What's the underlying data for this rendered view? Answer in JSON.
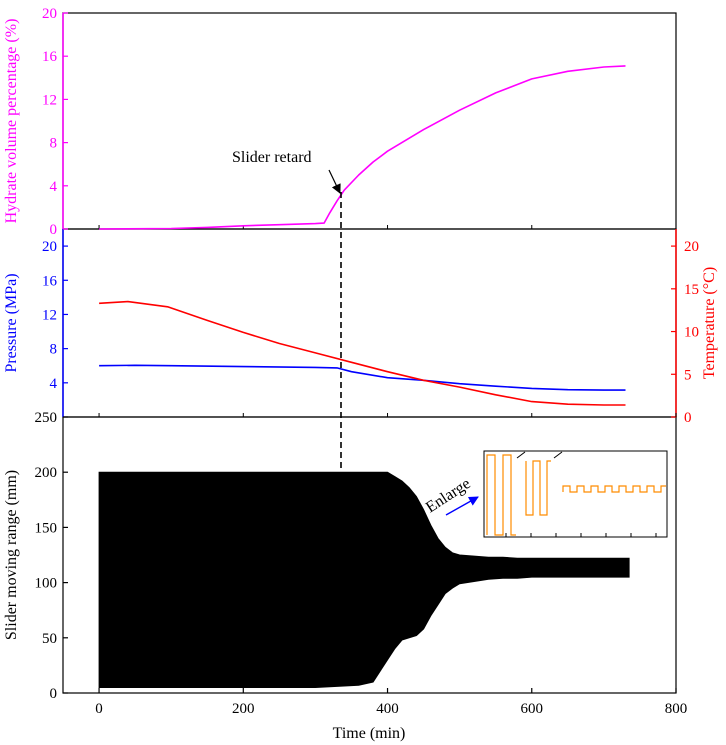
{
  "chart_data": [
    {
      "type": "line",
      "id": "hydrate",
      "ylabel": "Hydrate volume percentage (%)",
      "ylim": [
        0,
        20
      ],
      "yticks": [
        0,
        4,
        8,
        12,
        16,
        20
      ],
      "series": [
        {
          "color": "#ff00ff",
          "x": [
            0,
            100,
            150,
            200,
            250,
            300,
            312,
            320,
            330,
            340,
            360,
            380,
            400,
            450,
            500,
            550,
            600,
            650,
            700,
            730
          ],
          "y": [
            0,
            0.05,
            0.15,
            0.3,
            0.4,
            0.5,
            0.55,
            1.5,
            2.6,
            3.6,
            5.0,
            6.2,
            7.2,
            9.2,
            11.0,
            12.6,
            13.9,
            14.6,
            15.0,
            15.1
          ]
        }
      ],
      "annotation": {
        "text": "Slider retard",
        "x": 338,
        "y": 3.4
      }
    },
    {
      "type": "line",
      "id": "pressure_temperature",
      "ylabel": "Pressure (MPa)",
      "ylim": [
        0,
        22
      ],
      "yticks": [
        4,
        8,
        12,
        16,
        20
      ],
      "y2label": "Temperature (°C)",
      "y2lim": [
        0,
        22
      ],
      "y2ticks": [
        0,
        5,
        10,
        15,
        20
      ],
      "series": [
        {
          "axis": "left",
          "color": "#0000ff",
          "x": [
            0,
            50,
            100,
            200,
            300,
            330,
            350,
            400,
            450,
            500,
            550,
            600,
            650,
            700,
            730
          ],
          "y": [
            6.0,
            6.05,
            6.0,
            5.9,
            5.8,
            5.75,
            5.3,
            4.6,
            4.3,
            3.9,
            3.6,
            3.35,
            3.2,
            3.15,
            3.15
          ]
        },
        {
          "axis": "right",
          "color": "#ff0000",
          "x": [
            0,
            40,
            95,
            150,
            200,
            250,
            300,
            350,
            400,
            450,
            500,
            550,
            600,
            650,
            700,
            730
          ],
          "y": [
            13.3,
            13.5,
            12.9,
            11.3,
            9.9,
            8.6,
            7.5,
            6.4,
            5.3,
            4.3,
            3.5,
            2.6,
            1.8,
            1.5,
            1.4,
            1.4
          ]
        }
      ]
    },
    {
      "type": "area",
      "id": "slider",
      "ylabel": "Slider moving range (mm)",
      "xlabel": "Time (min)",
      "ylim": [
        0,
        250
      ],
      "yticks": [
        0,
        50,
        100,
        150,
        200,
        250
      ],
      "xlim": [
        -50,
        800
      ],
      "xticks": [
        0,
        200,
        400,
        600,
        800
      ],
      "band_color": "#000000",
      "band": {
        "x": [
          0,
          100,
          200,
          300,
          360,
          380,
          400,
          410,
          420,
          430,
          440,
          450,
          460,
          470,
          480,
          490,
          500,
          520,
          540,
          560,
          580,
          600,
          650,
          700,
          735
        ],
        "upper": [
          200,
          200,
          200,
          200,
          200,
          200,
          200,
          196,
          192,
          186,
          178,
          166,
          152,
          140,
          132,
          127,
          125,
          124,
          123,
          123,
          122,
          122,
          122,
          122,
          122
        ],
        "lower": [
          5,
          5,
          5,
          5,
          7,
          10,
          30,
          40,
          48,
          50,
          52,
          58,
          70,
          80,
          90,
          95,
          99,
          101,
          103,
          104,
          104,
          105,
          105,
          105,
          105
        ]
      },
      "annotation": {
        "text": "Enlarge"
      }
    }
  ]
}
